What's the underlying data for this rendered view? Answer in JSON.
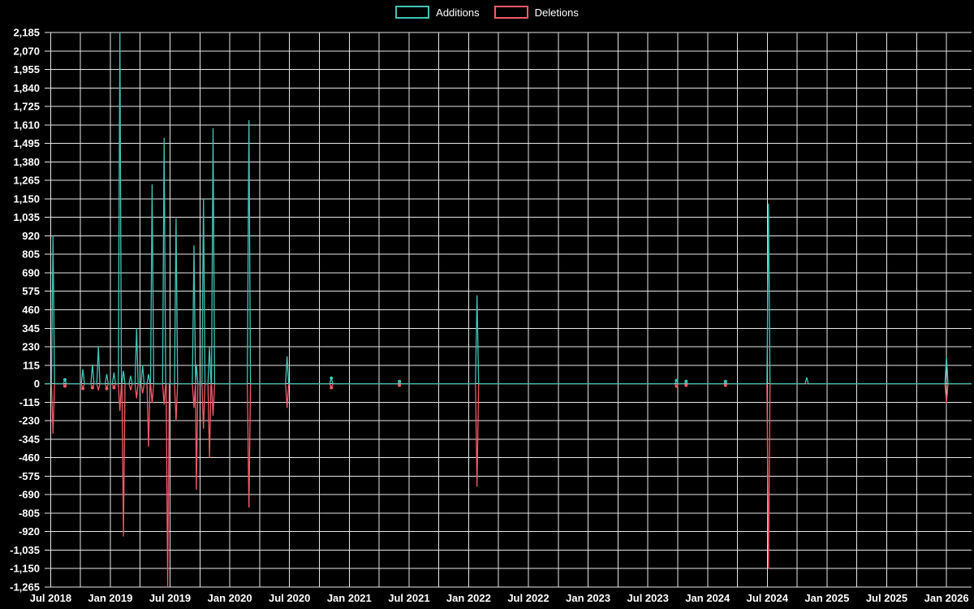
{
  "colors": {
    "background": "#000000",
    "grid": "#ffffff",
    "text": "#ffffff",
    "additions": "#40c4b5",
    "deletions": "#f45b69"
  },
  "chart_data": {
    "type": "line",
    "title": "",
    "xlabel": "",
    "ylabel": "",
    "legend_position": "top-center",
    "grid": true,
    "series": [
      {
        "name": "Additions",
        "color": "#40c4b5"
      },
      {
        "name": "Deletions",
        "color": "#f45b69"
      }
    ],
    "ylim": [
      -1265,
      2185
    ],
    "y_tick_step": 115,
    "xlim": [
      2018.45,
      2026.21
    ],
    "x_grid": {
      "start": 2018.5,
      "end": 2026.0,
      "step": 0.25
    },
    "x_ticks": [
      {
        "t": 2018.5,
        "label": "Jul 2018"
      },
      {
        "t": 2019.0,
        "label": "Jan 2019"
      },
      {
        "t": 2019.5,
        "label": "Jul 2019"
      },
      {
        "t": 2020.0,
        "label": "Jan 2020"
      },
      {
        "t": 2020.5,
        "label": "Jul 2020"
      },
      {
        "t": 2021.0,
        "label": "Jan 2021"
      },
      {
        "t": 2021.5,
        "label": "Jul 2021"
      },
      {
        "t": 2022.0,
        "label": "Jan 2022"
      },
      {
        "t": 2022.5,
        "label": "Jul 2022"
      },
      {
        "t": 2023.0,
        "label": "Jan 2023"
      },
      {
        "t": 2023.5,
        "label": "Jul 2023"
      },
      {
        "t": 2024.0,
        "label": "Jan 2024"
      },
      {
        "t": 2024.5,
        "label": "Jul 2024"
      },
      {
        "t": 2025.0,
        "label": "Jan 2025"
      },
      {
        "t": 2025.5,
        "label": "Jul 2025"
      },
      {
        "t": 2026.0,
        "label": "Jan 2026"
      }
    ],
    "baseline": 0,
    "spike_half_width_years": 0.013,
    "dot_threshold": 35,
    "events": [
      {
        "t": 2018.52,
        "additions": 920,
        "deletions": -310
      },
      {
        "t": 2018.62,
        "additions": 25,
        "deletions": -15
      },
      {
        "t": 2018.77,
        "additions": 90,
        "deletions": -30
      },
      {
        "t": 2018.85,
        "additions": 120,
        "deletions": -25
      },
      {
        "t": 2018.9,
        "additions": 230,
        "deletions": -40
      },
      {
        "t": 2018.97,
        "additions": 60,
        "deletions": -30
      },
      {
        "t": 2019.03,
        "additions": 70,
        "deletions": -25
      },
      {
        "t": 2019.08,
        "additions": 2185,
        "deletions": -170
      },
      {
        "t": 2019.11,
        "additions": 80,
        "deletions": -950
      },
      {
        "t": 2019.17,
        "additions": 50,
        "deletions": -40
      },
      {
        "t": 2019.22,
        "additions": 345,
        "deletions": -90
      },
      {
        "t": 2019.27,
        "additions": 115,
        "deletions": -60
      },
      {
        "t": 2019.32,
        "additions": 60,
        "deletions": -390
      },
      {
        "t": 2019.35,
        "additions": 1240,
        "deletions": -120
      },
      {
        "t": 2019.45,
        "additions": 1530,
        "deletions": -130
      },
      {
        "t": 2019.48,
        "additions": 0,
        "deletions": -1265
      },
      {
        "t": 2019.55,
        "additions": 1030,
        "deletions": -230
      },
      {
        "t": 2019.7,
        "additions": 860,
        "deletions": -150
      },
      {
        "t": 2019.72,
        "additions": 120,
        "deletions": -660
      },
      {
        "t": 2019.78,
        "additions": 1150,
        "deletions": -280
      },
      {
        "t": 2019.83,
        "additions": 230,
        "deletions": -460
      },
      {
        "t": 2019.86,
        "additions": 1590,
        "deletions": -200
      },
      {
        "t": 2020.16,
        "additions": 1640,
        "deletions": -770
      },
      {
        "t": 2020.48,
        "additions": 170,
        "deletions": -150
      },
      {
        "t": 2020.85,
        "additions": 35,
        "deletions": -25
      },
      {
        "t": 2021.42,
        "additions": 15,
        "deletions": -10
      },
      {
        "t": 2022.07,
        "additions": 550,
        "deletions": -640
      },
      {
        "t": 2023.74,
        "additions": 20,
        "deletions": -15
      },
      {
        "t": 2023.82,
        "additions": 15,
        "deletions": -10
      },
      {
        "t": 2024.15,
        "additions": 15,
        "deletions": -10
      },
      {
        "t": 2024.51,
        "additions": 1120,
        "deletions": -1150
      },
      {
        "t": 2024.83,
        "additions": 40,
        "deletions": 0
      },
      {
        "t": 2026.0,
        "additions": 170,
        "deletions": -120
      }
    ]
  }
}
